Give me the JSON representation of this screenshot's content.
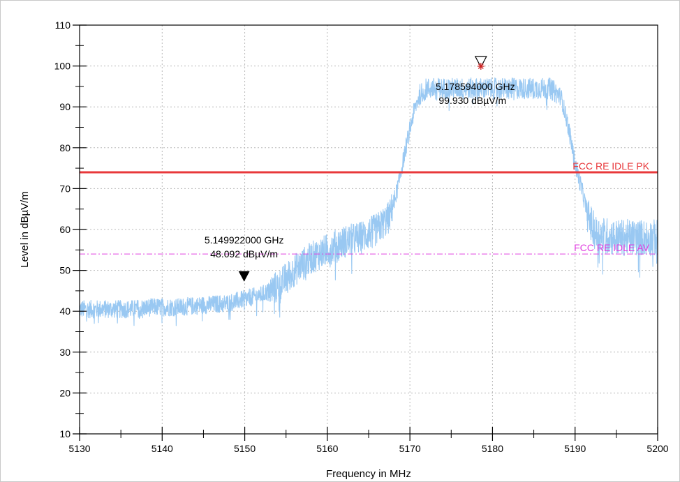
{
  "chart_data": {
    "type": "line",
    "title": "",
    "xlabel": "Frequency in MHz",
    "ylabel": "Level in dBµV/m",
    "xlim": [
      5130,
      5200
    ],
    "ylim": [
      10,
      110
    ],
    "x_ticks": [
      "5130",
      "5140",
      "5150",
      "5160",
      "5170",
      "5180",
      "5190",
      "5200"
    ],
    "y_ticks": [
      "10",
      "20",
      "30",
      "40",
      "50",
      "60",
      "70",
      "80",
      "90",
      "100",
      "110"
    ],
    "grid": true,
    "trace_color": "#99c8f2",
    "trace_envelope": [
      [
        5130,
        40.5
      ],
      [
        5133,
        40.5
      ],
      [
        5136,
        40.5
      ],
      [
        5139,
        41
      ],
      [
        5142,
        41
      ],
      [
        5145,
        41.5
      ],
      [
        5148,
        42
      ],
      [
        5150,
        43
      ],
      [
        5152,
        44
      ],
      [
        5154,
        46
      ],
      [
        5156,
        50
      ],
      [
        5158,
        53
      ],
      [
        5160,
        55
      ],
      [
        5162,
        57
      ],
      [
        5164,
        58
      ],
      [
        5166,
        60
      ],
      [
        5167.5,
        63
      ],
      [
        5168.5,
        70
      ],
      [
        5169.5,
        80
      ],
      [
        5170.5,
        89
      ],
      [
        5171.2,
        93
      ],
      [
        5172,
        94.5
      ],
      [
        5175,
        94.5
      ],
      [
        5178,
        94.5
      ],
      [
        5181,
        94.5
      ],
      [
        5184,
        94.5
      ],
      [
        5187,
        94.5
      ],
      [
        5188.3,
        92.5
      ],
      [
        5189.2,
        85
      ],
      [
        5190,
        76
      ],
      [
        5190.8,
        70
      ],
      [
        5191.6,
        63
      ],
      [
        5192.5,
        59
      ],
      [
        5195,
        58
      ],
      [
        5198,
        58
      ],
      [
        5200,
        58
      ]
    ],
    "limit_lines": [
      {
        "name": "FCC RE IDLE PK",
        "value": 74,
        "color": "#e8383b",
        "style": "solid"
      },
      {
        "name": "FCC RE IDLE AV",
        "value": 54,
        "color": "#e040e0",
        "style": "dashdot"
      }
    ],
    "markers": [
      {
        "freq_mhz": 5149.922,
        "level": 48.092,
        "freq_label": "5.149922000 GHz",
        "level_label": "48.092 dBµV/m",
        "symbol": "filled-triangle"
      },
      {
        "freq_mhz": 5178.594,
        "level": 99.93,
        "freq_label": "5.178594000 GHz",
        "level_label": "99.930 dBµV/m",
        "symbol": "open-triangle-star"
      }
    ]
  }
}
